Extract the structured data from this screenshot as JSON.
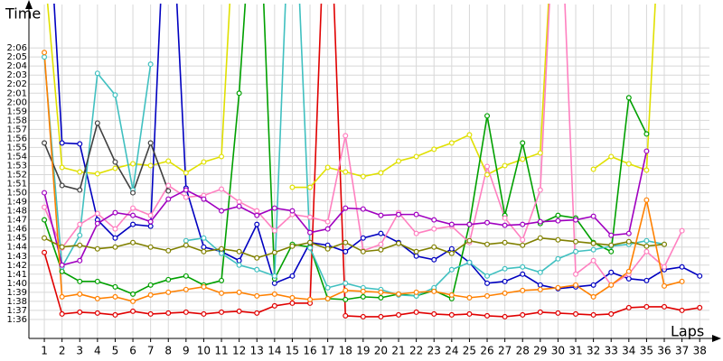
{
  "chart_data": {
    "type": "line",
    "y_label": "Time",
    "x_label": "Laps",
    "grid": true,
    "xlim": [
      0.13,
      38.55
    ],
    "ylim": [
      93.9,
      130.8
    ],
    "xticks": [
      1,
      2,
      3,
      4,
      5,
      6,
      7,
      8,
      9,
      10,
      11,
      12,
      13,
      14,
      15,
      16,
      17,
      18,
      19,
      20,
      21,
      22,
      23,
      24,
      25,
      26,
      27,
      28,
      29,
      30,
      31,
      32,
      33,
      34,
      35,
      36,
      37,
      38
    ],
    "yticks": [
      {
        "value": 96,
        "label": "1:36"
      },
      {
        "value": 97,
        "label": "1:37"
      },
      {
        "value": 98,
        "label": "1:38"
      },
      {
        "value": 99,
        "label": "1:39"
      },
      {
        "value": 100,
        "label": "1:40"
      },
      {
        "value": 101,
        "label": "1:41"
      },
      {
        "value": 102,
        "label": "1:42"
      },
      {
        "value": 103,
        "label": "1:43"
      },
      {
        "value": 104,
        "label": "1:44"
      },
      {
        "value": 105,
        "label": "1:45"
      },
      {
        "value": 106,
        "label": "1:46"
      },
      {
        "value": 107,
        "label": "1:47"
      },
      {
        "value": 108,
        "label": "1:48"
      },
      {
        "value": 109,
        "label": "1:49"
      },
      {
        "value": 110,
        "label": "1:50"
      },
      {
        "value": 111,
        "label": "1:51"
      },
      {
        "value": 112,
        "label": "1:52"
      },
      {
        "value": 113,
        "label": "1:53"
      },
      {
        "value": 114,
        "label": "1:54"
      },
      {
        "value": 115,
        "label": "1:55"
      },
      {
        "value": 116,
        "label": "1:56"
      },
      {
        "value": 117,
        "label": "1:57"
      },
      {
        "value": 118,
        "label": "1:58"
      },
      {
        "value": 119,
        "label": "1:59"
      },
      {
        "value": 120,
        "label": "2:00"
      },
      {
        "value": 121,
        "label": "2:01"
      },
      {
        "value": 122,
        "label": "2:02"
      },
      {
        "value": 123,
        "label": "2:03"
      },
      {
        "value": 124,
        "label": "2:04"
      },
      {
        "value": 125,
        "label": "2:05"
      },
      {
        "value": 126,
        "label": "2:06"
      }
    ],
    "series": [
      {
        "color": "#e00000",
        "values": [
          103.4,
          96.6,
          96.8,
          96.7,
          96.5,
          96.9,
          96.6,
          96.7,
          96.8,
          96.6,
          96.8,
          96.9,
          96.7,
          97.5,
          97.8,
          97.8,
          150,
          96.4,
          96.3,
          96.3,
          96.5,
          96.8,
          96.6,
          96.5,
          96.6,
          96.4,
          96.3,
          96.5,
          96.8,
          96.7,
          96.6,
          96.5,
          96.6,
          97.3,
          97.4,
          97.4,
          97.0,
          97.3
        ]
      },
      {
        "color": "#e0e000",
        "values": [
          135,
          112.8,
          112.3,
          112.1,
          112.7,
          113.2,
          113.0,
          113.5,
          112.2,
          113.4,
          114.0,
          150,
          null,
          null,
          110.6,
          110.6,
          112.8,
          112.3,
          111.8,
          112.2,
          113.5,
          114.0,
          114.8,
          115.5,
          116.4,
          112.0,
          113.0,
          113.7,
          114.4,
          150,
          null,
          112.6,
          114.0,
          113.2,
          112.5,
          150,
          null,
          null
        ]
      },
      {
        "color": "#0000c0",
        "values": [
          150,
          115.5,
          115.4,
          107.0,
          105.0,
          106.5,
          106.3,
          150,
          110.5,
          104.0,
          103.5,
          102.5,
          106.5,
          100.0,
          100.8,
          104.5,
          104.2,
          103.5,
          105.0,
          105.5,
          104.5,
          103.0,
          102.6,
          103.8,
          102.3,
          100.0,
          100.2,
          101.0,
          99.8,
          99.4,
          99.6,
          99.8,
          101.2,
          100.5,
          100.3,
          101.5,
          101.8,
          100.8
        ]
      },
      {
        "color": "#00a000",
        "values": [
          107.0,
          101.3,
          100.2,
          100.2,
          99.6,
          98.8,
          99.8,
          100.4,
          100.8,
          99.8,
          100.3,
          121.0,
          150,
          100.5,
          104.3,
          104.0,
          98.3,
          98.2,
          98.5,
          98.4,
          98.8,
          98.6,
          99.2,
          98.3,
          106.5,
          118.5,
          107.5,
          115.5,
          106.6,
          107.5,
          107.2,
          104.5,
          103.5,
          120.5,
          116.5,
          null,
          null,
          null
        ]
      },
      {
        "color": "#ff80c0",
        "values": [
          108.4,
          103.9,
          106.5,
          107.7,
          106.0,
          108.3,
          107.5,
          110.8,
          109.5,
          109.7,
          110.4,
          109.0,
          108.0,
          105.8,
          107.6,
          107.3,
          106.8,
          116.3,
          103.6,
          104.3,
          107.8,
          105.5,
          106.0,
          106.3,
          104.5,
          112.9,
          107.2,
          104.8,
          110.3,
          150,
          101.0,
          102.5,
          99.8,
          101.0,
          103.5,
          101.8,
          105.8,
          null
        ]
      },
      {
        "color": "#40c0c0",
        "values": [
          125.0,
          101.8,
          105.3,
          123.2,
          120.8,
          110.3,
          124.2,
          null,
          104.7,
          105.0,
          103.3,
          102.0,
          101.5,
          100.8,
          150,
          103.9,
          99.5,
          100.0,
          99.5,
          99.3,
          98.7,
          98.6,
          99.5,
          101.5,
          102.3,
          100.8,
          101.6,
          101.8,
          101.2,
          102.7,
          103.5,
          103.7,
          104.1,
          104.3,
          104.7,
          104.3,
          null,
          null
        ]
      },
      {
        "color": "#404040",
        "values": [
          115.5,
          110.8,
          110.3,
          117.7,
          113.4,
          110.0,
          115.5,
          110.2,
          null,
          null,
          null,
          null,
          null,
          null,
          null,
          null,
          null,
          null,
          null,
          null,
          null,
          null,
          null,
          null,
          null,
          null,
          null,
          null,
          null,
          null,
          null,
          null,
          null,
          null,
          null,
          null,
          null,
          null
        ]
      },
      {
        "color": "#a000c0",
        "values": [
          110.0,
          102.0,
          102.5,
          106.6,
          107.8,
          107.5,
          106.8,
          109.3,
          110.3,
          109.3,
          108.0,
          108.5,
          107.5,
          108.3,
          108.0,
          105.6,
          106.0,
          108.3,
          108.2,
          107.5,
          107.6,
          107.6,
          107.0,
          106.5,
          106.5,
          106.7,
          106.4,
          106.5,
          106.8,
          106.9,
          107.0,
          107.4,
          105.3,
          105.5,
          114.6,
          null,
          null,
          null
        ]
      },
      {
        "color": "#808000",
        "values": [
          105.0,
          104.0,
          104.2,
          103.8,
          104.0,
          104.5,
          104.0,
          103.6,
          104.2,
          103.5,
          103.8,
          103.5,
          102.8,
          103.4,
          104.1,
          104.5,
          103.8,
          104.5,
          103.5,
          103.7,
          104.4,
          103.5,
          104.0,
          103.3,
          104.7,
          104.3,
          104.5,
          104.2,
          105.0,
          104.8,
          104.6,
          104.4,
          104.2,
          104.6,
          104.1,
          104.3,
          null,
          null
        ]
      },
      {
        "color": "#ff8000",
        "values": [
          125.5,
          98.5,
          98.8,
          98.3,
          98.5,
          98.0,
          98.7,
          99.0,
          99.3,
          99.6,
          98.9,
          99.0,
          98.6,
          98.8,
          98.4,
          98.2,
          98.3,
          99.2,
          99.1,
          99.0,
          98.8,
          99.0,
          99.1,
          98.7,
          98.4,
          98.6,
          98.9,
          99.2,
          99.3,
          99.5,
          99.8,
          98.5,
          99.8,
          101.3,
          109.2,
          99.7,
          100.2,
          null
        ]
      }
    ]
  }
}
